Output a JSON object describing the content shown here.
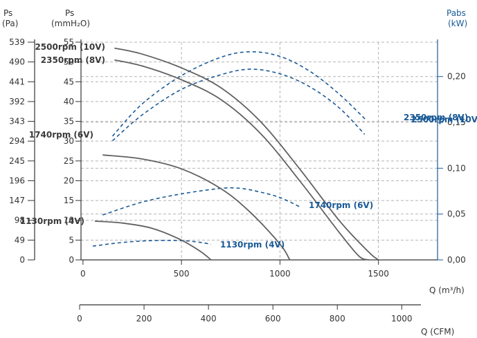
{
  "chart_data": {
    "type": "line",
    "left_axis_pa": {
      "title_line1": "Ps",
      "title_line2": "(Pa)",
      "ticks": [
        "0",
        "49",
        "98",
        "147",
        "196",
        "245",
        "294",
        "343",
        "392",
        "441",
        "490",
        "539"
      ]
    },
    "left_axis_mm": {
      "title_line1": "Ps",
      "title_line2": "(mmH₂O)",
      "range": [
        0,
        55
      ],
      "ticks": [
        "0",
        "5",
        "10",
        "15",
        "20",
        "25",
        "30",
        "35",
        "40",
        "45",
        "50",
        "55"
      ]
    },
    "right_axis": {
      "title_line1": "Pabs",
      "title_line2": "(kW)",
      "range": [
        0,
        0.2375
      ],
      "ticks": [
        "0,00",
        "0,05",
        "0,10",
        "0,15",
        "0,20"
      ],
      "tick_values": [
        0,
        0.05,
        0.1,
        0.15,
        0.2
      ]
    },
    "x_axis": {
      "label": "Q (m³/h)",
      "range": [
        -10,
        1800
      ],
      "ticks": [
        "0",
        "500",
        "1000",
        "1500"
      ],
      "tick_values": [
        0,
        500,
        1000,
        1500
      ]
    },
    "x_axis_cfm": {
      "label": "Q (CFM)",
      "range": [
        0,
        1059.5
      ],
      "ticks": [
        "0",
        "200",
        "400",
        "600",
        "800",
        "1000"
      ],
      "tick_values": [
        0,
        200,
        400,
        600,
        800,
        1000
      ]
    },
    "grid": true,
    "pressure_series": [
      {
        "name": "2500rpm (10V)",
        "label": "2500rpm (10V)",
        "points": [
          [
            160,
            53.5
          ],
          [
            300,
            52
          ],
          [
            500,
            48.5
          ],
          [
            700,
            43.5
          ],
          [
            900,
            35
          ],
          [
            1100,
            23
          ],
          [
            1300,
            10
          ],
          [
            1450,
            2
          ],
          [
            1500,
            0
          ]
        ]
      },
      {
        "name": "2350rpm (8V)",
        "label": "2350rpm (8V)",
        "points": [
          [
            160,
            50.5
          ],
          [
            300,
            49
          ],
          [
            500,
            45.5
          ],
          [
            700,
            40.5
          ],
          [
            900,
            32
          ],
          [
            1100,
            20
          ],
          [
            1300,
            7
          ],
          [
            1400,
            1
          ],
          [
            1450,
            0
          ]
        ]
      },
      {
        "name": "1740rpm (6V)",
        "label": "1740rpm (6V)",
        "points": [
          [
            100,
            26.5
          ],
          [
            300,
            25.5
          ],
          [
            500,
            23
          ],
          [
            700,
            18
          ],
          [
            850,
            12
          ],
          [
            1000,
            4
          ],
          [
            1050,
            0
          ]
        ]
      },
      {
        "name": "1130rpm (4V)",
        "label": "1130rpm (4V)",
        "points": [
          [
            60,
            9.8
          ],
          [
            200,
            9.3
          ],
          [
            350,
            8
          ],
          [
            500,
            5
          ],
          [
            600,
            2
          ],
          [
            650,
            0
          ]
        ]
      }
    ],
    "power_series": [
      {
        "name": "2500rpm (10V)",
        "label": "2500rpm (10V)",
        "points": [
          [
            150,
            0.135
          ],
          [
            300,
            0.17
          ],
          [
            500,
            0.201
          ],
          [
            700,
            0.221
          ],
          [
            850,
            0.227
          ],
          [
            1000,
            0.222
          ],
          [
            1150,
            0.206
          ],
          [
            1300,
            0.181
          ],
          [
            1440,
            0.152
          ]
        ]
      },
      {
        "name": "2350rpm (8V)",
        "label": "2350rpm (8V)",
        "points": [
          [
            150,
            0.13
          ],
          [
            300,
            0.158
          ],
          [
            500,
            0.186
          ],
          [
            700,
            0.202
          ],
          [
            850,
            0.208
          ],
          [
            1000,
            0.203
          ],
          [
            1150,
            0.189
          ],
          [
            1300,
            0.166
          ],
          [
            1430,
            0.137
          ]
        ]
      },
      {
        "name": "1740rpm (6V)",
        "label": "1740rpm (6V)",
        "points": [
          [
            100,
            0.049
          ],
          [
            300,
            0.063
          ],
          [
            500,
            0.072
          ],
          [
            700,
            0.078
          ],
          [
            800,
            0.078
          ],
          [
            900,
            0.074
          ],
          [
            1000,
            0.068
          ],
          [
            1100,
            0.058
          ]
        ]
      },
      {
        "name": "1130rpm (4V)",
        "label": "1130rpm (4V)",
        "points": [
          [
            50,
            0.015
          ],
          [
            200,
            0.019
          ],
          [
            350,
            0.021
          ],
          [
            500,
            0.021
          ],
          [
            600,
            0.019
          ],
          [
            650,
            0.017
          ]
        ]
      }
    ],
    "colors": {
      "pressure": "#606060",
      "power": "#1a5a96",
      "grid": "#b4b4b4",
      "axis": "#333333"
    }
  }
}
